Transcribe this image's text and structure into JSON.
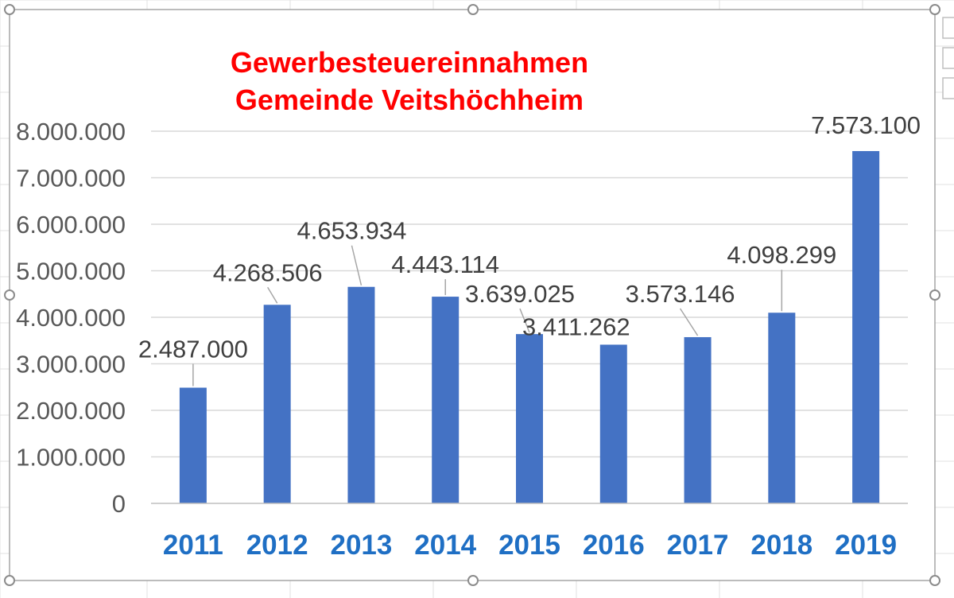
{
  "chart_data": {
    "type": "bar",
    "title": "Gewerbesteuereinnahmen",
    "subtitle": "Gemeinde Veitshöchheim",
    "categories": [
      "2011",
      "2012",
      "2013",
      "2014",
      "2015",
      "2016",
      "2017",
      "2018",
      "2019"
    ],
    "values": [
      2487000,
      4268506,
      4653934,
      4443114,
      3639025,
      3411262,
      3573146,
      4098299,
      7573100
    ],
    "data_labels": [
      "2.487.000",
      "4.268.506",
      "4.653.934",
      "4.443.114",
      "3.639.025",
      "3.411.262",
      "3.573.146",
      "4.098.299",
      "7.573.100"
    ],
    "y_ticks": [
      "0",
      "1.000.000",
      "2.000.000",
      "3.000.000",
      "4.000.000",
      "5.000.000",
      "6.000.000",
      "7.000.000",
      "8.000.000"
    ],
    "ylim": [
      0,
      8000000
    ],
    "grid": true,
    "legend": "none",
    "colors": {
      "bar": "#4472c4",
      "title": "#ff0000",
      "x_labels": "#1f6fc4"
    }
  }
}
